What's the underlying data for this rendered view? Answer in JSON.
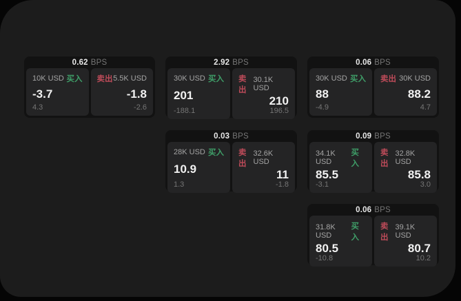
{
  "labels": {
    "bps_unit": "BPS",
    "buy": "买入",
    "sell": "卖出"
  },
  "colors": {
    "buy_accent": "#3f9e68",
    "sell_accent": "#bd4b59",
    "window_bg": "#1c1c1c",
    "card_bg": "#121212",
    "panel_bg": "#242425"
  },
  "cards": [
    {
      "bps": "0.62",
      "row": 1,
      "col": 1,
      "buy": {
        "amount": "10K USD",
        "value": "-3.7",
        "sub": "4.3"
      },
      "sell": {
        "amount": "5.5K USD",
        "value": "-1.8",
        "sub": "-2.6"
      }
    },
    {
      "bps": "2.92",
      "row": 1,
      "col": 2,
      "buy": {
        "amount": "30K USD",
        "value": "201",
        "sub": "-188.1"
      },
      "sell": {
        "amount": "30.1K USD",
        "value": "210",
        "sub": "196.5"
      }
    },
    {
      "bps": "0.06",
      "row": 1,
      "col": 3,
      "buy": {
        "amount": "30K USD",
        "value": "88",
        "sub": "-4.9"
      },
      "sell": {
        "amount": "30K USD",
        "value": "88.2",
        "sub": "4.7"
      }
    },
    {
      "bps": "0.03",
      "row": 2,
      "col": 2,
      "buy": {
        "amount": "28K USD",
        "value": "10.9",
        "sub": "1.3"
      },
      "sell": {
        "amount": "32.6K USD",
        "value": "11",
        "sub": "-1.8"
      }
    },
    {
      "bps": "0.09",
      "row": 2,
      "col": 3,
      "buy": {
        "amount": "34.1K USD",
        "value": "85.5",
        "sub": "-3.1"
      },
      "sell": {
        "amount": "32.8K USD",
        "value": "85.8",
        "sub": "3.0"
      }
    },
    {
      "bps": "0.06",
      "row": 3,
      "col": 3,
      "buy": {
        "amount": "31.8K USD",
        "value": "80.5",
        "sub": "-10.8"
      },
      "sell": {
        "amount": "39.1K USD",
        "value": "80.7",
        "sub": "10.2"
      }
    }
  ]
}
